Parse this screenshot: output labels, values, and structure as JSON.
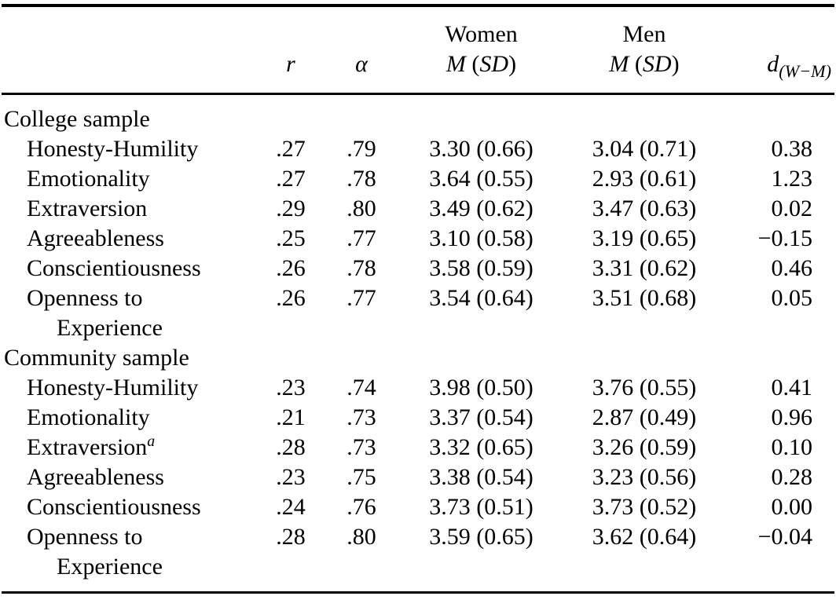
{
  "table": {
    "header": {
      "r_label": "r",
      "alpha_label": "α",
      "women_label": "Women",
      "men_label": "Men",
      "m_label": "M",
      "sd_open": " (",
      "sd_label": "SD",
      "sd_close": ")",
      "d_label": "d",
      "d_sub": "(W−M)"
    },
    "sections": [
      {
        "label": "College sample",
        "rows": [
          {
            "label": "Honesty-Humility",
            "r": ".27",
            "alpha": ".79",
            "women": "3.30 (0.66)",
            "men": "3.04 (0.71)",
            "d": "0.38"
          },
          {
            "label": "Emotionality",
            "r": ".27",
            "alpha": ".78",
            "women": "3.64 (0.55)",
            "men": "2.93 (0.61)",
            "d": "1.23"
          },
          {
            "label": "Extraversion",
            "r": ".29",
            "alpha": ".80",
            "women": "3.49 (0.62)",
            "men": "3.47 (0.63)",
            "d": "0.02"
          },
          {
            "label": "Agreeableness",
            "r": ".25",
            "alpha": ".77",
            "women": "3.10 (0.58)",
            "men": "3.19 (0.65)",
            "d": "−0.15"
          },
          {
            "label": "Conscientiousness",
            "r": ".26",
            "alpha": ".78",
            "women": "3.58 (0.59)",
            "men": "3.31 (0.62)",
            "d": "0.46"
          },
          {
            "label": "Openness to\nExperience",
            "r": ".26",
            "alpha": ".77",
            "women": "3.54 (0.64)",
            "men": "3.51 (0.68)",
            "d": "0.05"
          }
        ]
      },
      {
        "label": "Community sample",
        "rows": [
          {
            "label": "Honesty-Humility",
            "r": ".23",
            "alpha": ".74",
            "women": "3.98 (0.50)",
            "men": "3.76 (0.55)",
            "d": "0.41"
          },
          {
            "label": "Emotionality",
            "r": ".21",
            "alpha": ".73",
            "women": "3.37 (0.54)",
            "men": "2.87 (0.49)",
            "d": "0.96"
          },
          {
            "label": "Extraversion",
            "sup": "a",
            "r": ".28",
            "alpha": ".73",
            "women": "3.32 (0.65)",
            "men": "3.26 (0.59)",
            "d": "0.10"
          },
          {
            "label": "Agreeableness",
            "r": ".23",
            "alpha": ".75",
            "women": "3.38 (0.54)",
            "men": "3.23 (0.56)",
            "d": "0.28"
          },
          {
            "label": "Conscientiousness",
            "r": ".24",
            "alpha": ".76",
            "women": "3.73 (0.51)",
            "men": "3.73 (0.52)",
            "d": "0.00"
          },
          {
            "label": "Openness to\nExperience",
            "r": ".28",
            "alpha": ".80",
            "women": "3.59 (0.65)",
            "men": "3.62 (0.64)",
            "d": "−0.04"
          }
        ]
      }
    ]
  }
}
